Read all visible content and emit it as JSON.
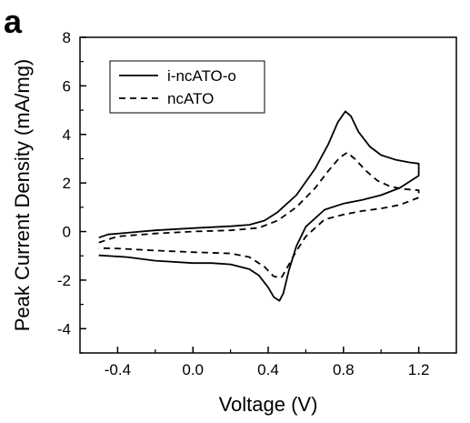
{
  "panel_label": "a",
  "chart_data": {
    "type": "line",
    "xlabel": "Voltage (V)",
    "ylabel": "Peak Current Density (mA/mg)",
    "xlim": [
      -0.6,
      1.4
    ],
    "ylim": [
      -5,
      8
    ],
    "xticks": [
      -0.4,
      0.0,
      0.4,
      0.8,
      1.2
    ],
    "xtick_labels": [
      "-0.4",
      "0.0",
      "0.4",
      "0.8",
      "1.2"
    ],
    "yticks": [
      -4,
      -2,
      0,
      2,
      4,
      6,
      8
    ],
    "ytick_labels": [
      "-4",
      "-2",
      "0",
      "2",
      "4",
      "6",
      "8"
    ],
    "grid": false,
    "legend_position": "top-left",
    "series": [
      {
        "name": "i-ncATO-o",
        "style": "solid",
        "color": "#000000",
        "points": [
          [
            -0.5,
            -0.25
          ],
          [
            -0.45,
            -0.12
          ],
          [
            -0.35,
            -0.05
          ],
          [
            -0.2,
            0.05
          ],
          [
            0.0,
            0.14
          ],
          [
            0.2,
            0.22
          ],
          [
            0.3,
            0.28
          ],
          [
            0.38,
            0.45
          ],
          [
            0.45,
            0.8
          ],
          [
            0.55,
            1.5
          ],
          [
            0.65,
            2.6
          ],
          [
            0.72,
            3.6
          ],
          [
            0.77,
            4.5
          ],
          [
            0.81,
            4.95
          ],
          [
            0.84,
            4.75
          ],
          [
            0.88,
            4.1
          ],
          [
            0.94,
            3.5
          ],
          [
            1.0,
            3.15
          ],
          [
            1.08,
            2.95
          ],
          [
            1.15,
            2.85
          ],
          [
            1.2,
            2.8
          ],
          [
            1.2,
            2.3
          ],
          [
            1.1,
            1.8
          ],
          [
            1.0,
            1.5
          ],
          [
            0.9,
            1.3
          ],
          [
            0.8,
            1.15
          ],
          [
            0.7,
            0.9
          ],
          [
            0.6,
            0.2
          ],
          [
            0.55,
            -0.6
          ],
          [
            0.51,
            -1.6
          ],
          [
            0.48,
            -2.55
          ],
          [
            0.46,
            -2.85
          ],
          [
            0.43,
            -2.7
          ],
          [
            0.4,
            -2.3
          ],
          [
            0.35,
            -1.8
          ],
          [
            0.3,
            -1.55
          ],
          [
            0.2,
            -1.35
          ],
          [
            0.1,
            -1.3
          ],
          [
            0.0,
            -1.3
          ],
          [
            -0.2,
            -1.2
          ],
          [
            -0.35,
            -1.05
          ],
          [
            -0.5,
            -0.98
          ]
        ]
      },
      {
        "name": "ncATO",
        "style": "dashed",
        "color": "#000000",
        "points": [
          [
            -0.5,
            -0.45
          ],
          [
            -0.4,
            -0.2
          ],
          [
            -0.2,
            -0.08
          ],
          [
            0.0,
            0.0
          ],
          [
            0.2,
            0.05
          ],
          [
            0.35,
            0.15
          ],
          [
            0.45,
            0.45
          ],
          [
            0.55,
            1.0
          ],
          [
            0.65,
            1.8
          ],
          [
            0.72,
            2.5
          ],
          [
            0.78,
            3.05
          ],
          [
            0.82,
            3.25
          ],
          [
            0.86,
            3.0
          ],
          [
            0.92,
            2.5
          ],
          [
            0.98,
            2.1
          ],
          [
            1.05,
            1.85
          ],
          [
            1.12,
            1.75
          ],
          [
            1.2,
            1.7
          ],
          [
            1.2,
            1.4
          ],
          [
            1.1,
            1.1
          ],
          [
            1.0,
            0.95
          ],
          [
            0.9,
            0.85
          ],
          [
            0.8,
            0.7
          ],
          [
            0.7,
            0.5
          ],
          [
            0.6,
            -0.2
          ],
          [
            0.55,
            -0.8
          ],
          [
            0.5,
            -1.5
          ],
          [
            0.47,
            -1.9
          ],
          [
            0.43,
            -1.85
          ],
          [
            0.38,
            -1.45
          ],
          [
            0.3,
            -1.05
          ],
          [
            0.2,
            -0.9
          ],
          [
            0.0,
            -0.85
          ],
          [
            -0.2,
            -0.78
          ],
          [
            -0.4,
            -0.7
          ],
          [
            -0.5,
            -0.68
          ]
        ]
      }
    ]
  }
}
